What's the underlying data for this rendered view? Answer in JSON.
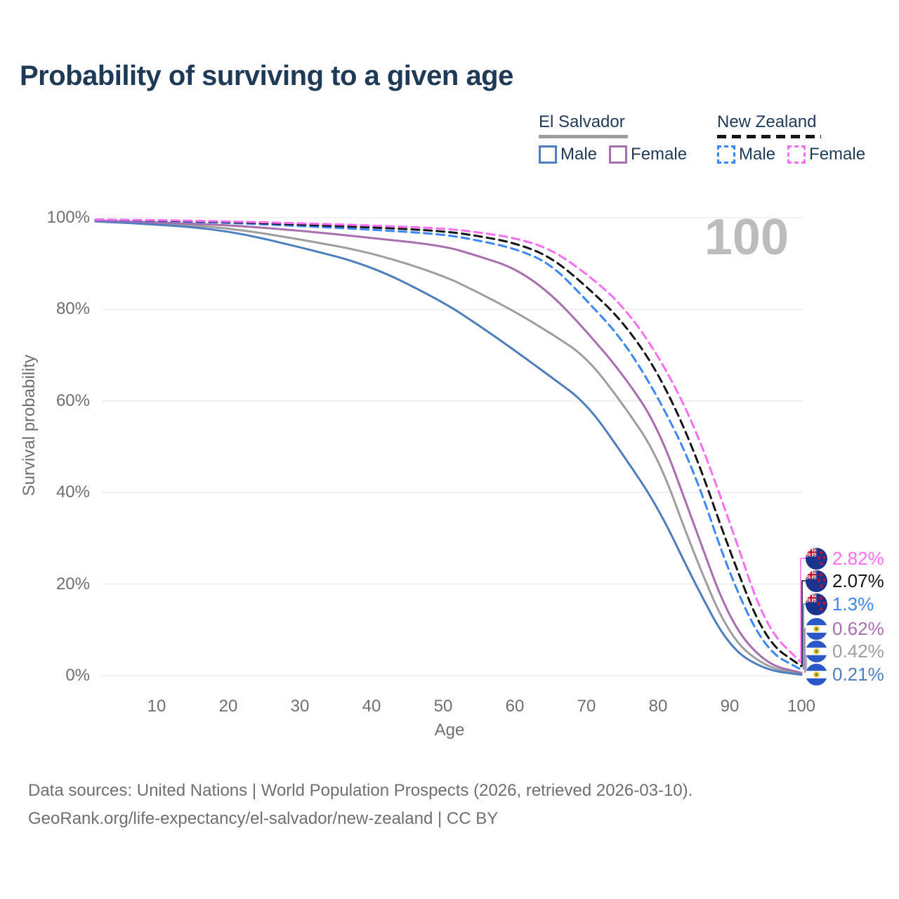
{
  "title": "Probability of surviving to a given age",
  "watermark": "100",
  "legend": {
    "groups": [
      {
        "name": "El Salvador",
        "line_style": "solid",
        "line_color": "#9e9e9e",
        "items": [
          {
            "label": "Male",
            "color": "#4d7ebf",
            "dashed": false
          },
          {
            "label": "Female",
            "color": "#a76fae",
            "dashed": false
          }
        ]
      },
      {
        "name": "New Zealand",
        "line_style": "dashed",
        "line_color": "#151515",
        "items": [
          {
            "label": "Male",
            "color": "#3b87f7",
            "dashed": true
          },
          {
            "label": "Female",
            "color": "#fb6df2",
            "dashed": true
          }
        ]
      }
    ]
  },
  "axes": {
    "y_title": "Survival probability",
    "y_ticks": [
      {
        "label": "100%",
        "value": 100
      },
      {
        "label": "80%",
        "value": 80
      },
      {
        "label": "60%",
        "value": 60
      },
      {
        "label": "40%",
        "value": 40
      },
      {
        "label": "20%",
        "value": 20
      },
      {
        "label": "0%",
        "value": 0
      }
    ],
    "x_title": "Age",
    "x_ticks": [
      {
        "label": "10",
        "value": 10
      },
      {
        "label": "20",
        "value": 20
      },
      {
        "label": "30",
        "value": 30
      },
      {
        "label": "40",
        "value": 40
      },
      {
        "label": "50",
        "value": 50
      },
      {
        "label": "60",
        "value": 60
      },
      {
        "label": "70",
        "value": 70
      },
      {
        "label": "80",
        "value": 80
      },
      {
        "label": "90",
        "value": 90
      },
      {
        "label": "100",
        "value": 100
      }
    ]
  },
  "chart_data": {
    "type": "line",
    "title": "Probability of surviving to a given age",
    "xlabel": "Age",
    "ylabel": "Survival probability",
    "xlim": [
      0,
      100
    ],
    "ylim": [
      0,
      100
    ],
    "grid": "horizontal",
    "legend_position": "top-right",
    "x": [
      0,
      10,
      20,
      30,
      40,
      50,
      55,
      60,
      65,
      70,
      75,
      80,
      85,
      90,
      95,
      100
    ],
    "series": [
      {
        "name": "El Salvador Both sexes",
        "color": "#9e9e9e",
        "dashed": false,
        "values": [
          99.3,
          98.8,
          97.8,
          95.3,
          92.4,
          87.4,
          83.6,
          79.5,
          74.8,
          69.6,
          59.5,
          47.9,
          26.5,
          8.4,
          1.8,
          0.42
        ]
      },
      {
        "name": "El Salvador Male",
        "color": "#4d7ebf",
        "dashed": false,
        "values": [
          99.2,
          98.6,
          97.2,
          93.6,
          89.5,
          81.6,
          76.5,
          71.0,
          65.3,
          59.5,
          48.5,
          36.8,
          20.5,
          6.0,
          1.2,
          0.21
        ]
      },
      {
        "name": "El Salvador Female",
        "color": "#a76fae",
        "dashed": false,
        "values": [
          99.4,
          99.0,
          98.4,
          97.2,
          95.6,
          93.9,
          91.6,
          89.0,
          83.5,
          75.2,
          66.0,
          54.4,
          33.0,
          11.8,
          2.5,
          0.62
        ]
      },
      {
        "name": "New Zealand Male",
        "color": "#3b87f7",
        "dashed": true,
        "values": [
          99.5,
          99.3,
          98.9,
          98.2,
          97.4,
          96.4,
          95.0,
          93.3,
          90.0,
          82.0,
          73.5,
          60.9,
          45.0,
          21.8,
          5.5,
          1.3
        ]
      },
      {
        "name": "New Zealand Both sexes",
        "color": "#151515",
        "dashed": true,
        "values": [
          99.6,
          99.4,
          99.1,
          98.5,
          97.9,
          97.1,
          96.0,
          94.5,
          91.5,
          85.0,
          77.5,
          66.3,
          49.5,
          27.1,
          7.5,
          2.07
        ]
      },
      {
        "name": "New Zealand Female",
        "color": "#fb6df2",
        "dashed": true,
        "values": [
          99.6,
          99.5,
          99.2,
          98.8,
          98.3,
          97.7,
          96.8,
          95.6,
          93.2,
          87.8,
          81.0,
          70.1,
          55.0,
          33.6,
          10.5,
          2.82
        ]
      }
    ]
  },
  "end_labels": [
    {
      "value": "2.82%",
      "value_num": 2.82,
      "series": "New Zealand Female",
      "flag": "nz",
      "color": "#fb6df2"
    },
    {
      "value": "2.07%",
      "value_num": 2.07,
      "series": "New Zealand Both sexes",
      "flag": "nz",
      "color": "#151515"
    },
    {
      "value": "1.3%",
      "value_num": 1.3,
      "series": "New Zealand Male",
      "flag": "nz",
      "color": "#3b87f7"
    },
    {
      "value": "0.62%",
      "value_num": 0.62,
      "series": "El Salvador Female",
      "flag": "sv",
      "color": "#a76fae"
    },
    {
      "value": "0.42%",
      "value_num": 0.42,
      "series": "El Salvador Both sexes",
      "flag": "sv",
      "color": "#9e9e9e"
    },
    {
      "value": "0.21%",
      "value_num": 0.21,
      "series": "El Salvador Male",
      "flag": "sv",
      "color": "#4d7ebf"
    }
  ],
  "footer": {
    "line1": "Data sources: United Nations | World Population Prospects (2026, retrieved 2026-03-10).",
    "line2": "GeoRank.org/life-expectancy/el-salvador/new-zealand | CC BY"
  },
  "colors": {
    "title_text": "#1f3a57",
    "axis_text": "#6f6f6f",
    "gridline": "#eaeaea",
    "watermark": "#bcbcbc"
  }
}
